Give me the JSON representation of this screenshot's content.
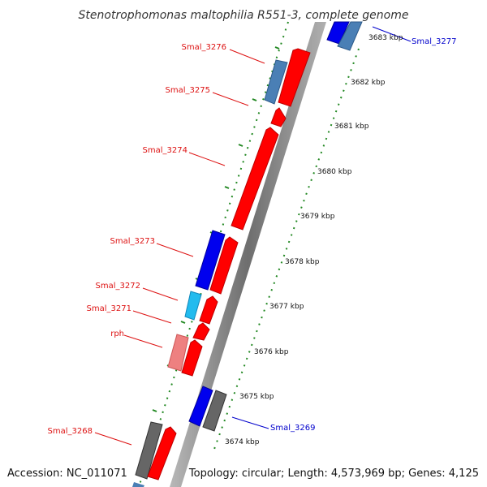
{
  "title": "Stenotrophomonas maltophilia R551-3, complete genome",
  "footer": {
    "accession": "Accession: NC_011071",
    "topology": "Topology: circular; Length: 4,573,969 bp; Genes: 4,125"
  },
  "colors": {
    "forward_label": "#dd1111",
    "reverse_label": "#0000cc",
    "forward_gene": "#ff0000",
    "forward_gene_edge": "#bb0000",
    "reverse_gene_blue": "#0000ee",
    "reverse_gene_steel": "#4a7fb5",
    "reverse_gene_cyan": "#22bbee",
    "pseudo_pink": "#ee8080",
    "gray_gene": "#666666",
    "ruler": "#228822",
    "backbone": "#888888"
  },
  "ruler": {
    "unit": "kbp",
    "ticks": [
      "3674 kbp",
      "3675 kbp",
      "3676 kbp",
      "3677 kbp",
      "3678 kbp",
      "3679 kbp",
      "3680 kbp",
      "3681 kbp",
      "3682 kbp",
      "3683 kbp"
    ]
  },
  "gene_labels": [
    {
      "id": "smal-3277",
      "text": "Smal_3277",
      "strand": "reverse"
    },
    {
      "id": "smal-3276",
      "text": "Smal_3276",
      "strand": "forward"
    },
    {
      "id": "smal-3275",
      "text": "Smal_3275",
      "strand": "forward"
    },
    {
      "id": "smal-3274",
      "text": "Smal_3274",
      "strand": "forward"
    },
    {
      "id": "smal-3273",
      "text": "Smal_3273",
      "strand": "forward"
    },
    {
      "id": "smal-3272",
      "text": "Smal_3272",
      "strand": "forward"
    },
    {
      "id": "smal-3271",
      "text": "Smal_3271",
      "strand": "forward"
    },
    {
      "id": "rph",
      "text": "rph",
      "strand": "forward"
    },
    {
      "id": "smal-3269",
      "text": "Smal_3269",
      "strand": "reverse"
    },
    {
      "id": "smal-3268",
      "text": "Smal_3268",
      "strand": "forward"
    }
  ]
}
